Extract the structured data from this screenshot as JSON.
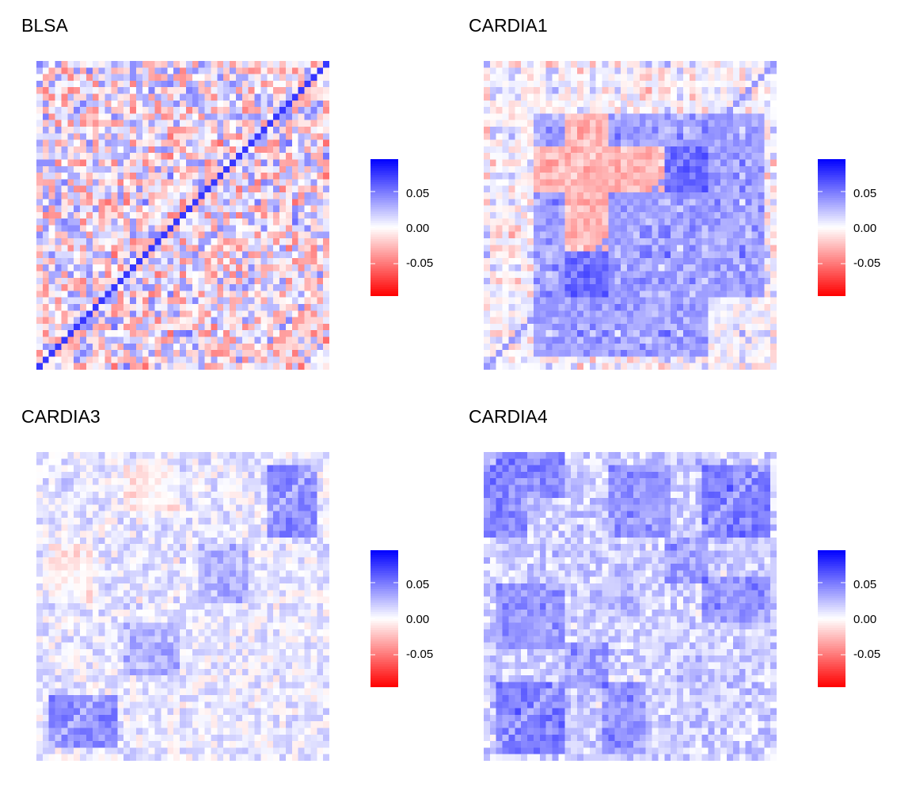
{
  "colors": {
    "negative": "#ff0000",
    "zero": "#ffffff",
    "positive": "#0000ff"
  },
  "colorbar": {
    "min": -0.095,
    "max": 0.095,
    "ticks": [
      {
        "value": 0.05,
        "label": "0.05"
      },
      {
        "value": 0.0,
        "label": "0.00"
      },
      {
        "value": -0.05,
        "label": "-0.05"
      }
    ]
  },
  "chart_data": [
    {
      "type": "heatmap",
      "title": "BLSA",
      "n": 47,
      "diagonal_value": 0.075,
      "pattern": "noisy",
      "blocks": [],
      "value_range": [
        -0.095,
        0.095
      ]
    },
    {
      "type": "heatmap",
      "title": "CARDIA1",
      "n": 47,
      "diagonal_value": 0.04,
      "pattern": "banded",
      "blocks": [
        {
          "rows": [
            8,
            35
          ],
          "cols": [
            8,
            44
          ],
          "mean": 0.035
        },
        {
          "rows": [
            8,
            35
          ],
          "cols": [
            13,
            19
          ],
          "mean": -0.045
        },
        {
          "rows": [
            29,
            35
          ],
          "cols": [
            13,
            19
          ],
          "mean": 0.07
        }
      ],
      "value_range": [
        -0.095,
        0.095
      ]
    },
    {
      "type": "heatmap",
      "title": "CARDIA3",
      "n": 47,
      "diagonal_value": 0.02,
      "pattern": "mild",
      "blocks": [
        {
          "rows": [
            37,
            44
          ],
          "cols": [
            2,
            12
          ],
          "mean": 0.04
        },
        {
          "rows": [
            14,
            22
          ],
          "cols": [
            26,
            33
          ],
          "mean": 0.025
        },
        {
          "rows": [
            14,
            22
          ],
          "cols": [
            2,
            8
          ],
          "mean": -0.01
        }
      ],
      "value_range": [
        -0.095,
        0.095
      ]
    },
    {
      "type": "heatmap",
      "title": "CARDIA4",
      "n": 47,
      "diagonal_value": 0.025,
      "pattern": "positive-blocks",
      "blocks": [
        {
          "rows": [
            0,
            6
          ],
          "cols": [
            2,
            12
          ],
          "mean": 0.035
        },
        {
          "rows": [
            35,
            45
          ],
          "cols": [
            2,
            12
          ],
          "mean": 0.04
        },
        {
          "rows": [
            20,
            29
          ],
          "cols": [
            2,
            12
          ],
          "mean": 0.03
        },
        {
          "rows": [
            29,
            35
          ],
          "cols": [
            13,
            19
          ],
          "mean": 0.03
        },
        {
          "rows": [
            35,
            45
          ],
          "cols": [
            19,
            25
          ],
          "mean": 0.03
        }
      ],
      "value_range": [
        -0.095,
        0.095
      ]
    }
  ]
}
